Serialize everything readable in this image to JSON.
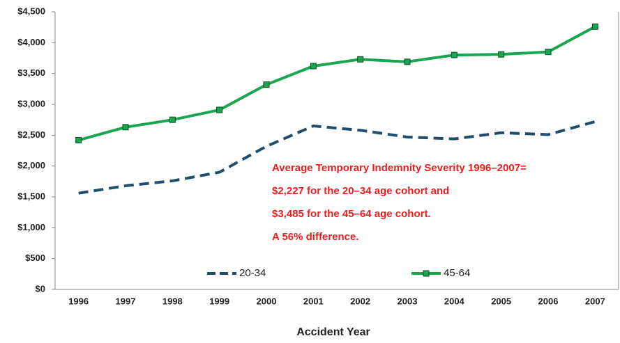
{
  "chart_data": {
    "type": "line",
    "x_label": "Accident Year",
    "categories": [
      "1996",
      "1997",
      "1998",
      "1999",
      "2000",
      "2001",
      "2002",
      "2003",
      "2004",
      "2005",
      "2006",
      "2007"
    ],
    "series": [
      {
        "name": "20-34",
        "color": "#1f4e6b",
        "dashed": true,
        "markers": false,
        "values": [
          1560,
          1680,
          1760,
          1900,
          2320,
          2650,
          2580,
          2470,
          2440,
          2540,
          2510,
          2720
        ]
      },
      {
        "name": "45-64",
        "color": "#1aa550",
        "dashed": false,
        "markers": true,
        "values": [
          2420,
          2630,
          2750,
          2910,
          3320,
          3620,
          3730,
          3690,
          3800,
          3810,
          3850,
          4260
        ]
      }
    ],
    "ylim": [
      0,
      4500
    ],
    "yticks": [
      {
        "value": 0,
        "label": "$0"
      },
      {
        "value": 500,
        "label": "$500"
      },
      {
        "value": 1000,
        "label": "$1,000"
      },
      {
        "value": 1500,
        "label": "$1,500"
      },
      {
        "value": 2000,
        "label": "$2,000"
      },
      {
        "value": 2500,
        "label": "$2,500"
      },
      {
        "value": 3000,
        "label": "$3,000"
      },
      {
        "value": 3500,
        "label": "$3,500"
      },
      {
        "value": 4000,
        "label": "$4,000"
      },
      {
        "value": 4500,
        "label": "$4,500"
      }
    ],
    "grid": false,
    "annotations": [
      "Average Temporary Indemnity Severity 1996–2007=",
      "$2,227 for the 20–34 age cohort and",
      "$3,485 for the 45–64 age cohort.",
      "A 56% difference."
    ]
  }
}
